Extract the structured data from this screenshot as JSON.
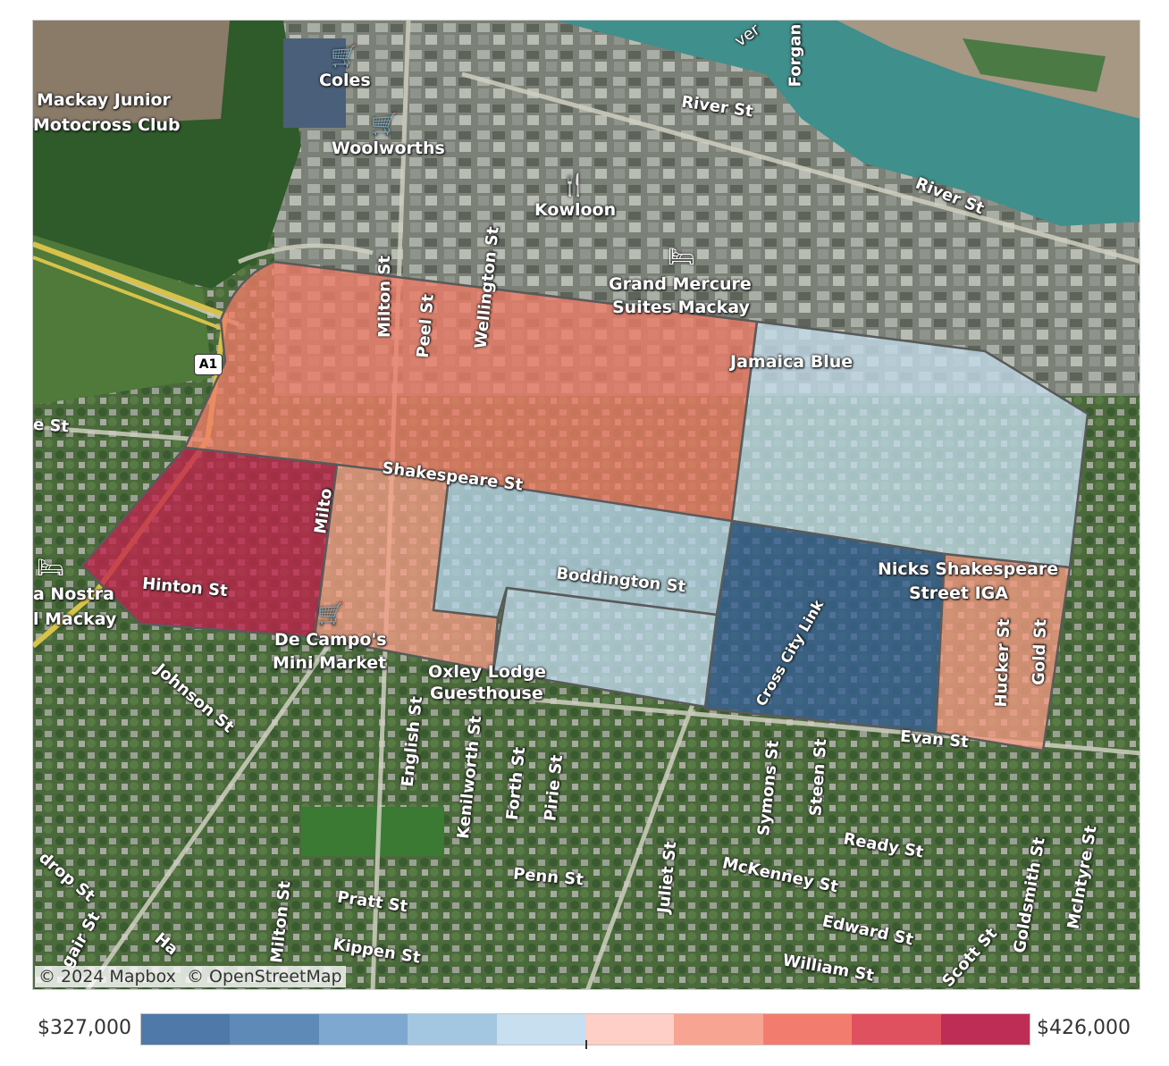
{
  "map": {
    "attribution": {
      "mapbox": "© 2024 Mapbox",
      "osm": "© OpenStreetMap"
    },
    "route_shield": "A1",
    "poi_labels": {
      "coles": "Coles",
      "woolworths": "Woolworths",
      "kowloon": "Kowloon",
      "grand_mercure_1": "Grand Mercure",
      "grand_mercure_2": "Suites Mackay",
      "jamaica_blue": "Jamaica Blue",
      "nicks_1": "Nicks Shakespeare",
      "nicks_2": "Street IGA",
      "decampos_1": "De Campo's",
      "decampos_2": "Mini Market",
      "oxley_1": "Oxley Lodge",
      "oxley_2": "Guesthouse",
      "motocross_1": "Mackay Junior",
      "motocross_2": "Motocross Club",
      "nostra_1": "a Nostra",
      "nostra_2": "l Mackay"
    },
    "street_labels": {
      "river_st_1": "River St",
      "river_st_2": "River St",
      "forgan": "Forgan",
      "milton_st_north": "Milton St",
      "peel_st": "Peel St",
      "wellington_st": "Wellington St",
      "shakespeare_st": "Shakespeare St",
      "boddington_st": "Boddington St",
      "hinton_st": "Hinton St",
      "cross_city_link": "Cross City Link",
      "hucker_st": "Hucker St",
      "gold_st": "Gold St",
      "evan_st": "Evan St",
      "johnson_st": "Johnson St",
      "english_st": "English St",
      "kenilworth_st": "Kenilworth St",
      "forth_st": "Forth St",
      "pirie_st": "Pirie St",
      "juliet_st": "Juliet St",
      "symons_st": "Symons St",
      "steen_st": "Steen St",
      "ready_st": "Ready St",
      "goldsmith_st": "Goldsmith St",
      "mcintyre_st": "McIntyre St",
      "penn_st": "Penn St",
      "mckenney_st": "McKenney St",
      "pratt_st": "Pratt St",
      "milton_st_south": "Milton St",
      "kippen_st": "Kippen St",
      "edward_st": "Edward St",
      "william_st": "William St",
      "scott_st": "Scott St",
      "e_st_west": "e St",
      "drop_st": "drop St",
      "gair_st": "gair St",
      "ha": "Ha",
      "milt_partial": "Milto",
      "river_partial": "ver"
    },
    "colors": {
      "satellite_base": "#6f7466",
      "water": "#3f8f8c"
    },
    "regions": [
      {
        "id": "north-west-block",
        "value_class": 7,
        "color": "#f07b66"
      },
      {
        "id": "hinton-block",
        "value_class": 10,
        "color": "#c0224b"
      },
      {
        "id": "milton-south-block",
        "value_class": 7,
        "color": "#f59c85"
      },
      {
        "id": "jamaica-blue-block",
        "value_class": 4,
        "color": "#c4dcec"
      },
      {
        "id": "boddington-north-block",
        "value_class": 4,
        "color": "#b9d5ea"
      },
      {
        "id": "boddington-south-block",
        "value_class": 4,
        "color": "#c1dbee"
      },
      {
        "id": "cross-city-block",
        "value_class": 1,
        "color": "#365f95"
      },
      {
        "id": "iga-block",
        "value_class": 7,
        "color": "#f59a82"
      }
    ]
  },
  "legend": {
    "min_label": "$327,000",
    "max_label": "$426,000",
    "swatches": [
      "#4f79a8",
      "#5e8ab8",
      "#7ea8d0",
      "#a4c7e1",
      "#c8dff0",
      "#fdcfc6",
      "#f8a493",
      "#f27d6e",
      "#e0515f",
      "#be2d55"
    ]
  }
}
